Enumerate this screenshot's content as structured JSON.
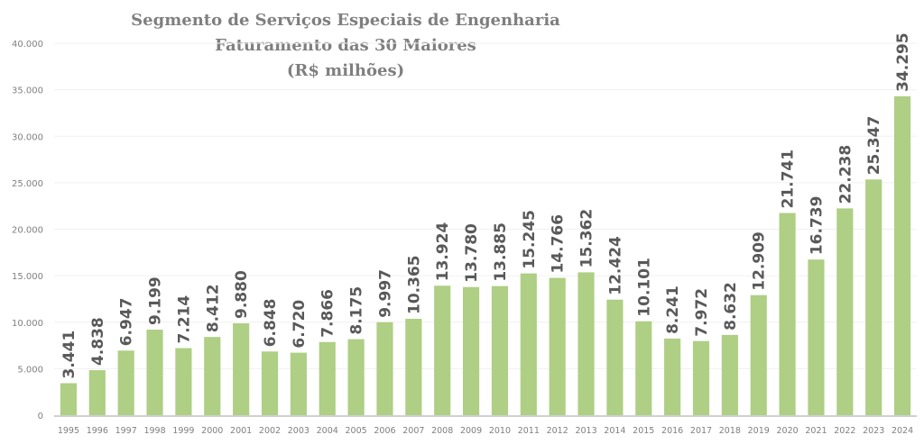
{
  "chart_data": {
    "type": "bar",
    "title": [
      "Segmento de Serviços Especiais de Engenharia",
      "Faturamento das 30 Maiores",
      "(R$ milhões)"
    ],
    "xlabel": "",
    "ylabel": "",
    "ylim": [
      0,
      40000
    ],
    "yticks": [
      0,
      5000,
      10000,
      15000,
      20000,
      25000,
      30000,
      35000,
      40000
    ],
    "ytick_labels": [
      "0",
      "5.000",
      "10.000",
      "15.000",
      "20.000",
      "25.000",
      "30.000",
      "35.000",
      "40.000"
    ],
    "grid": true,
    "legend": "none",
    "bar_color": "#aecf84",
    "categories": [
      "1995",
      "1996",
      "1997",
      "1998",
      "1999",
      "2000",
      "2001",
      "2002",
      "2003",
      "2004",
      "2005",
      "2006",
      "2007",
      "2008",
      "2009",
      "2010",
      "2011",
      "2012",
      "2013",
      "2014",
      "2015",
      "2016",
      "2017",
      "2018",
      "2019",
      "2020",
      "2021",
      "2022",
      "2023",
      "2024"
    ],
    "values": [
      3441,
      4838,
      6947,
      9199,
      7214,
      8412,
      9880,
      6848,
      6720,
      7866,
      8175,
      9997,
      10365,
      13924,
      13780,
      13885,
      15245,
      14766,
      15362,
      12424,
      10101,
      8241,
      7972,
      8632,
      12909,
      21741,
      16739,
      22238,
      25347,
      34295
    ],
    "data_labels": [
      "3.441",
      "4.838",
      "6.947",
      "9.199",
      "7.214",
      "8.412",
      "9.880",
      "6.848",
      "6.720",
      "7.866",
      "8.175",
      "9.997",
      "10.365",
      "13.924",
      "13.780",
      "13.885",
      "15.245",
      "14.766",
      "15.362",
      "12.424",
      "10.101",
      "8.241",
      "7.972",
      "8.632",
      "12.909",
      "21.741",
      "16.739",
      "22.238",
      "25.347",
      "34.295"
    ]
  }
}
